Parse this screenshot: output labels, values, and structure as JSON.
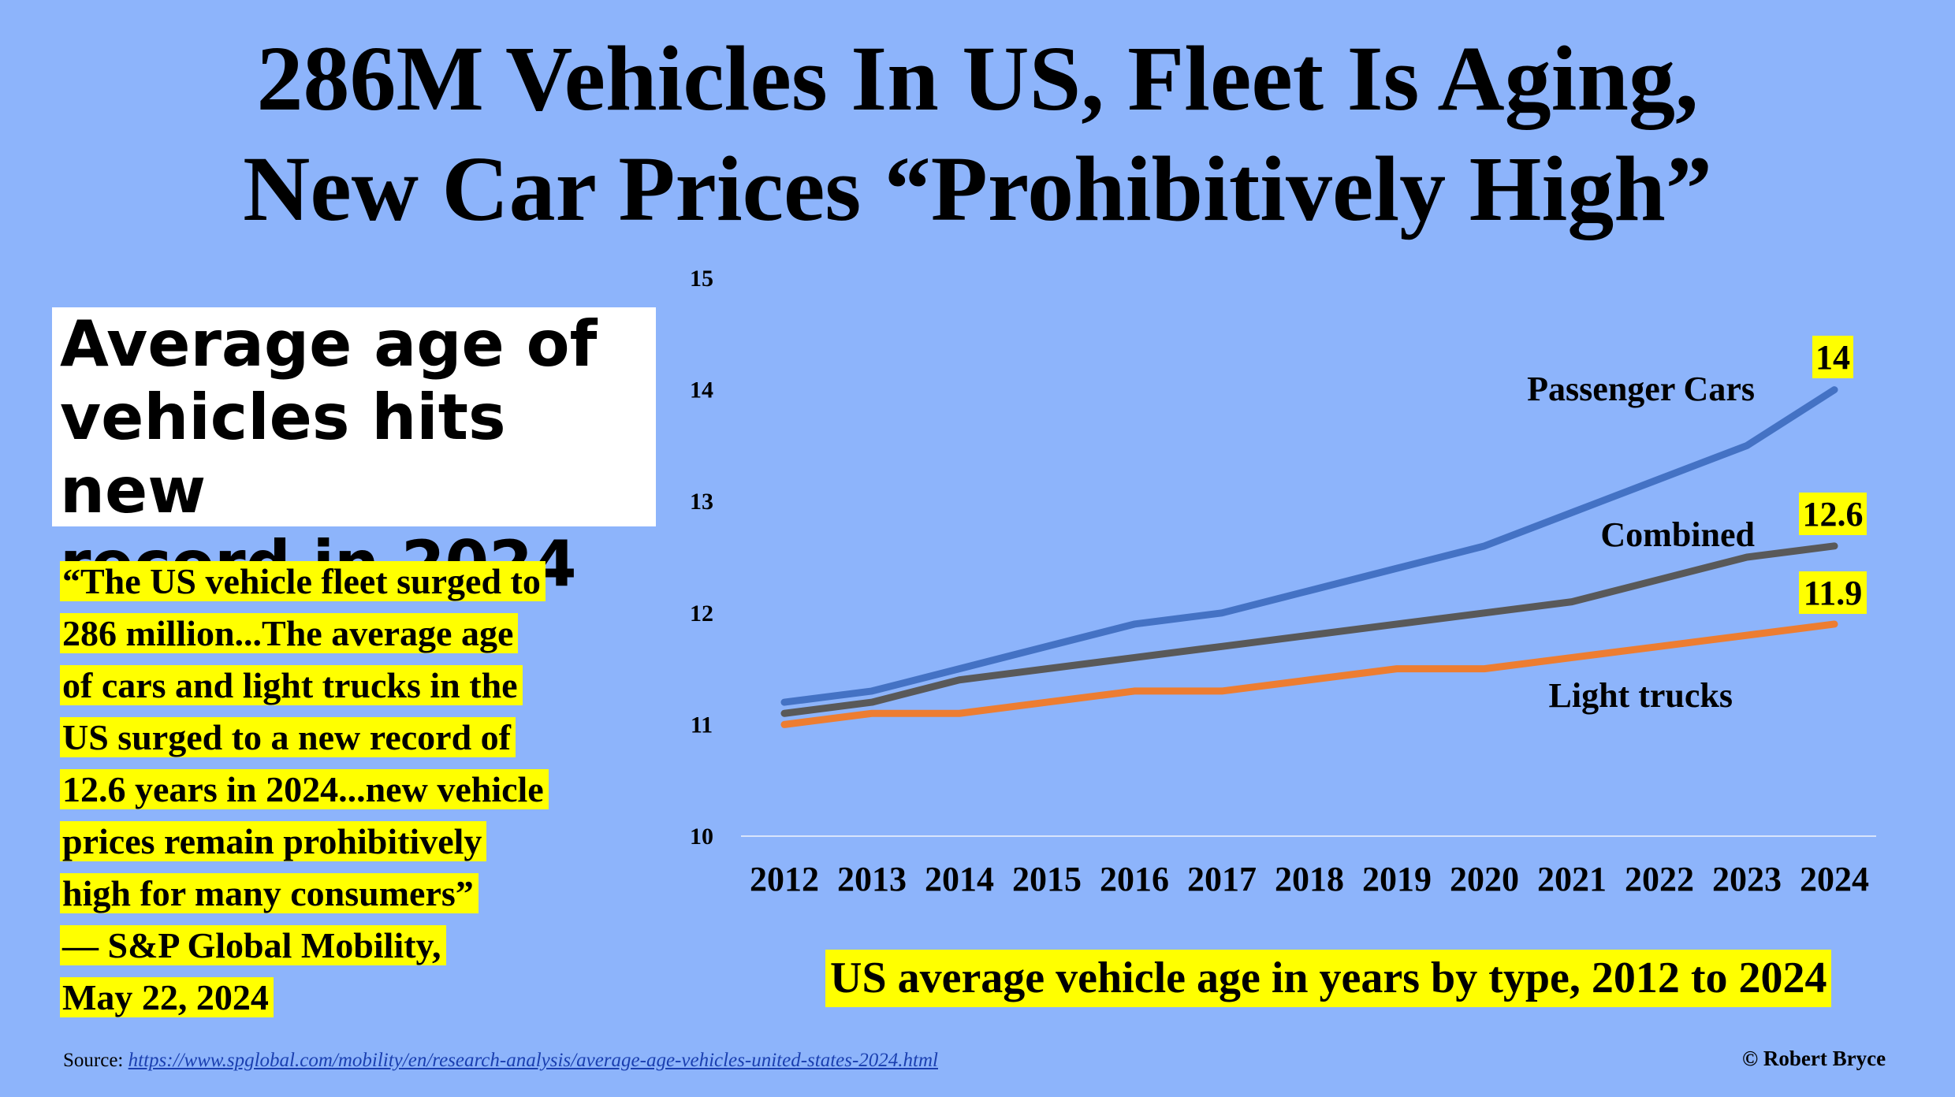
{
  "title": {
    "line1": "286M Vehicles In US, Fleet Is Aging,",
    "line2": "New Car Prices “Prohibitively High”"
  },
  "headline": "Average age of\nvehicles hits new\nrecord in 2024",
  "quote_lines": [
    "“The US vehicle fleet surged to",
    "286 million...The average age",
    "of cars and light trucks in the",
    "US surged to a new record of",
    "12.6 years in 2024...new vehicle",
    "prices remain prohibitively",
    "high for many consumers”",
    "— S&P Global Mobility,",
    "May 22, 2024"
  ],
  "caption": "US average vehicle age in years by type, 2012 to 2024",
  "source": {
    "label": "Source:",
    "url": "https://www.spglobal.com/mobility/en/research-analysis/average-age-vehicles-united-states-2024.html"
  },
  "copyright": "© Robert Bryce",
  "colors": {
    "background": "#8db4fb",
    "highlight": "#ffff00",
    "passenger_cars": "#4472c4",
    "combined": "#595959",
    "light_trucks": "#ed7d31"
  },
  "chart_data": {
    "type": "line",
    "x": [
      2012,
      2013,
      2014,
      2015,
      2016,
      2017,
      2018,
      2019,
      2020,
      2021,
      2022,
      2023,
      2024
    ],
    "ylim": [
      10,
      15
    ],
    "yticks": [
      10,
      11,
      12,
      13,
      14,
      15
    ],
    "grid": false,
    "series": [
      {
        "name": "Passenger Cars",
        "color": "#4472c4",
        "values": [
          11.2,
          11.3,
          11.5,
          11.7,
          11.9,
          12.0,
          12.2,
          12.4,
          12.6,
          12.9,
          13.2,
          13.5,
          14.0
        ],
        "end_label": "14"
      },
      {
        "name": "Combined",
        "color": "#595959",
        "values": [
          11.1,
          11.2,
          11.4,
          11.5,
          11.6,
          11.7,
          11.8,
          11.9,
          12.0,
          12.1,
          12.3,
          12.5,
          12.6
        ],
        "end_label": "12.6"
      },
      {
        "name": "Light trucks",
        "color": "#ed7d31",
        "values": [
          11.0,
          11.1,
          11.1,
          11.2,
          11.3,
          11.3,
          11.4,
          11.5,
          11.5,
          11.6,
          11.7,
          11.8,
          11.9
        ],
        "end_label": "11.9"
      }
    ]
  }
}
